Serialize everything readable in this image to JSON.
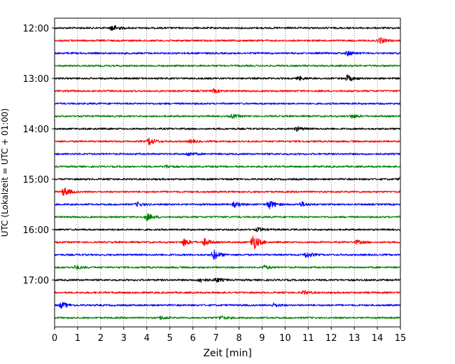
{
  "chart_data": {
    "type": "line",
    "title": "",
    "xlabel": "Zeit  [min]",
    "ylabel": "UTC (Lokalzeit = UTC + 01:00)",
    "xlim": [
      0,
      15
    ],
    "x_ticks": [
      "0",
      "1",
      "2",
      "3",
      "4",
      "5",
      "6",
      "7",
      "8",
      "9",
      "10",
      "11",
      "12",
      "13",
      "14",
      "15"
    ],
    "y_ticks": [
      "12:00",
      "13:00",
      "14:00",
      "15:00",
      "16:00",
      "17:00"
    ],
    "grid": "vertical dotted lines at each minute",
    "legend": "none",
    "trace_interval_minutes": 15,
    "color_cycle": [
      "#000000",
      "#ff0000",
      "#0000ff",
      "#008000"
    ],
    "traces": [
      {
        "start": "12:00",
        "color": "#000000",
        "events": [
          {
            "t": 2.5,
            "amp": 0.9
          }
        ]
      },
      {
        "start": "12:15",
        "color": "#ff0000",
        "events": [
          {
            "t": 14.1,
            "amp": 0.8
          }
        ]
      },
      {
        "start": "12:30",
        "color": "#0000ff",
        "events": [
          {
            "t": 12.7,
            "amp": 0.6
          }
        ]
      },
      {
        "start": "12:45",
        "color": "#008000",
        "events": []
      },
      {
        "start": "13:00",
        "color": "#000000",
        "events": [
          {
            "t": 10.6,
            "amp": 0.5
          },
          {
            "t": 12.7,
            "amp": 0.8
          }
        ]
      },
      {
        "start": "13:15",
        "color": "#ff0000",
        "events": [
          {
            "t": 6.9,
            "amp": 0.4
          }
        ]
      },
      {
        "start": "13:30",
        "color": "#0000ff",
        "events": []
      },
      {
        "start": "13:45",
        "color": "#008000",
        "events": [
          {
            "t": 7.7,
            "amp": 0.5
          },
          {
            "t": 12.9,
            "amp": 0.5
          }
        ]
      },
      {
        "start": "14:00",
        "color": "#000000",
        "events": [
          {
            "t": 10.5,
            "amp": 0.5
          }
        ]
      },
      {
        "start": "14:15",
        "color": "#ff0000",
        "events": [
          {
            "t": 4.1,
            "amp": 1.0
          },
          {
            "t": 5.9,
            "amp": 0.4
          }
        ]
      },
      {
        "start": "14:30",
        "color": "#0000ff",
        "events": [
          {
            "t": 5.8,
            "amp": 0.5
          }
        ]
      },
      {
        "start": "14:45",
        "color": "#008000",
        "events": [
          {
            "t": 4.8,
            "amp": 0.4
          }
        ]
      },
      {
        "start": "15:00",
        "color": "#000000",
        "events": [
          {
            "t": 15.0,
            "amp": 0.6
          }
        ]
      },
      {
        "start": "15:15",
        "color": "#ff0000",
        "events": [
          {
            "t": 0.4,
            "amp": 1.2
          }
        ]
      },
      {
        "start": "15:30",
        "color": "#0000ff",
        "events": [
          {
            "t": 3.6,
            "amp": 0.5
          },
          {
            "t": 7.8,
            "amp": 0.6
          },
          {
            "t": 9.3,
            "amp": 1.2
          },
          {
            "t": 10.7,
            "amp": 0.6
          }
        ]
      },
      {
        "start": "15:45",
        "color": "#008000",
        "events": [
          {
            "t": 4.0,
            "amp": 0.9
          }
        ]
      },
      {
        "start": "16:00",
        "color": "#000000",
        "events": [
          {
            "t": 8.8,
            "amp": 0.5
          }
        ]
      },
      {
        "start": "16:15",
        "color": "#ff0000",
        "events": [
          {
            "t": 5.6,
            "amp": 1.0
          },
          {
            "t": 6.5,
            "amp": 0.9
          },
          {
            "t": 8.6,
            "amp": 2.2
          },
          {
            "t": 13.1,
            "amp": 0.5
          }
        ]
      },
      {
        "start": "16:30",
        "color": "#0000ff",
        "events": [
          {
            "t": 6.9,
            "amp": 1.3
          },
          {
            "t": 10.9,
            "amp": 0.8
          }
        ]
      },
      {
        "start": "16:45",
        "color": "#008000",
        "events": [
          {
            "t": 0.9,
            "amp": 0.5
          },
          {
            "t": 9.1,
            "amp": 0.5
          }
        ]
      },
      {
        "start": "17:00",
        "color": "#000000",
        "events": [
          {
            "t": 6.3,
            "amp": 0.6
          },
          {
            "t": 7.0,
            "amp": 0.6
          }
        ]
      },
      {
        "start": "17:15",
        "color": "#ff0000",
        "events": [
          {
            "t": 10.8,
            "amp": 0.5
          }
        ]
      },
      {
        "start": "17:30",
        "color": "#0000ff",
        "events": [
          {
            "t": 0.3,
            "amp": 0.8
          },
          {
            "t": 9.5,
            "amp": 0.5
          }
        ]
      },
      {
        "start": "17:45",
        "color": "#008000",
        "events": [
          {
            "t": 4.6,
            "amp": 0.4
          },
          {
            "t": 7.2,
            "amp": 0.5
          }
        ]
      }
    ]
  }
}
